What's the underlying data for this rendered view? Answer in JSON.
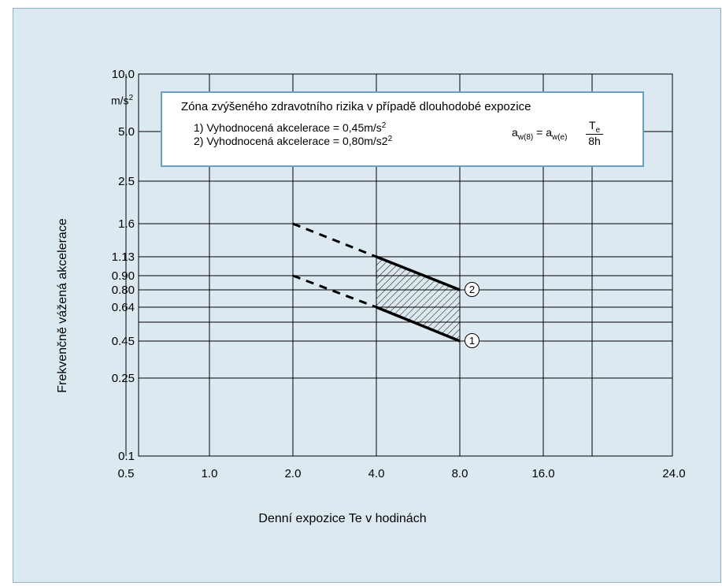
{
  "chart_data": {
    "type": "line",
    "xlabel": "Denní expozice Te v hodinách",
    "ylabel": "Frekvenčně vážená akcelerace",
    "yunit": "m/s",
    "yunit_sup": "2",
    "x_ticks": [
      "0.5",
      "1.0",
      "2.0",
      "4.0",
      "8.0",
      "16.0",
      "24.0"
    ],
    "x_tick_values": [
      0.5,
      1,
      2,
      4,
      8,
      16,
      24
    ],
    "y_ticks": [
      "10.0",
      "5.0",
      "2.5",
      "1.6",
      "1.13",
      "0.90",
      "0.80",
      "0.64",
      "0.45",
      "0.25",
      "0.1"
    ],
    "y_tick_values": [
      10,
      5,
      2.5,
      1.6,
      1.13,
      0.9,
      0.8,
      0.64,
      0.45,
      0.25,
      0.1
    ],
    "extra_gridline_y": 0.55,
    "xlim": [
      0.25,
      24
    ],
    "ylim": [
      0.1,
      10
    ],
    "x_scale": "log",
    "y_scale": "log",
    "series": [
      {
        "name": "2",
        "dashed": {
          "x": [
            2,
            4
          ],
          "y": [
            1.6,
            1.13
          ]
        },
        "solid": {
          "x": [
            4,
            8
          ],
          "y": [
            1.13,
            0.8
          ]
        }
      },
      {
        "name": "1",
        "dashed": {
          "x": [
            2,
            4
          ],
          "y": [
            0.9,
            0.64
          ]
        },
        "solid": {
          "x": [
            4,
            8
          ],
          "y": [
            0.64,
            0.45
          ]
        }
      }
    ],
    "hatched_zone": {
      "x": [
        4,
        8
      ],
      "upper": [
        1.13,
        0.8
      ],
      "lower": [
        0.64,
        0.45
      ]
    },
    "grid": true
  },
  "legend": {
    "title": "Zóna zvýšeného zdravotního rizika v případě dlouhodobé expozice",
    "line1_text": "1) Vyhodnocená akcelerace = 0,45m/s",
    "line1_sup": "2",
    "line2_text": "2) Vyhodnocená akcelerace = 0,80m/s2",
    "line2_sup": "2",
    "formula": {
      "lhs": "a",
      "lhs_sub": "w(8)",
      "eq": " = a",
      "rhs_sub": "w(e)",
      "num": "T",
      "num_sub": "e",
      "den": "8h"
    }
  },
  "markers": {
    "upper": "2",
    "lower": "1"
  },
  "colors": {
    "panel_bg": "#dde9f1",
    "panel_border": "#8fb3c9",
    "box_border": "#6aa0bd",
    "grid": "#000000"
  }
}
